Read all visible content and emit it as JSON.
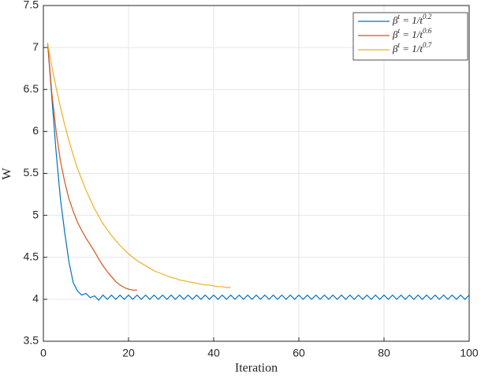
{
  "chart_data": {
    "type": "line",
    "xlabel": "Iteration",
    "ylabel": "W",
    "xlim": [
      0,
      100
    ],
    "xticks": [
      0,
      20,
      40,
      60,
      80,
      100
    ],
    "ylim": [
      3.5,
      7.5
    ],
    "yticks": [
      3.5,
      4,
      4.5,
      5,
      5.5,
      6,
      6.5,
      7,
      7.5
    ],
    "grid": true,
    "legend": "upper right",
    "series": [
      {
        "name": "β^t = 1/t^0.2",
        "color": "#0072bd",
        "x": [
          1,
          2,
          3,
          4,
          5,
          6,
          7,
          8,
          9,
          10,
          11,
          12,
          13,
          14,
          15,
          16,
          17,
          18,
          19,
          20,
          21,
          22,
          23,
          24,
          25,
          26,
          27,
          28,
          29,
          30,
          31,
          32,
          33,
          34,
          35,
          36,
          37,
          38,
          39,
          40,
          41,
          42,
          43,
          44,
          45,
          46,
          47,
          48,
          49,
          50,
          51,
          52,
          53,
          54,
          55,
          56,
          57,
          58,
          59,
          60,
          61,
          62,
          63,
          64,
          65,
          66,
          67,
          68,
          69,
          70,
          71,
          72,
          73,
          74,
          75,
          76,
          77,
          78,
          79,
          80,
          81,
          82,
          83,
          84,
          85,
          86,
          87,
          88,
          89,
          90,
          91,
          92,
          93,
          94,
          95,
          96,
          97,
          98,
          99,
          100
        ],
        "values": [
          7.05,
          6.4,
          5.75,
          5.2,
          4.8,
          4.45,
          4.2,
          4.1,
          4.05,
          4.07,
          4.02,
          4.04,
          3.99,
          4.05,
          4.0,
          4.05,
          4.0,
          4.05,
          4.0,
          4.05,
          4.0,
          4.05,
          4.0,
          4.05,
          4.0,
          4.05,
          4.0,
          4.05,
          4.0,
          4.05,
          4.0,
          4.05,
          4.0,
          4.05,
          4.0,
          4.05,
          4.0,
          4.05,
          4.0,
          4.05,
          4.0,
          4.05,
          4.0,
          4.05,
          4.0,
          4.05,
          4.0,
          4.05,
          4.0,
          4.05,
          4.0,
          4.05,
          4.0,
          4.05,
          4.0,
          4.05,
          4.0,
          4.05,
          4.0,
          4.05,
          4.0,
          4.05,
          4.0,
          4.05,
          4.0,
          4.05,
          4.0,
          4.05,
          4.0,
          4.05,
          4.0,
          4.05,
          4.0,
          4.05,
          4.0,
          4.05,
          4.0,
          4.05,
          4.0,
          4.05,
          4.0,
          4.05,
          4.0,
          4.05,
          4.0,
          4.05,
          4.0,
          4.05,
          4.0,
          4.05,
          4.0,
          4.05,
          4.0,
          4.05,
          4.0,
          4.05,
          4.0,
          4.05,
          4.0,
          4.05
        ]
      },
      {
        "name": "β^t = 1/t^0.6",
        "color": "#d95319",
        "x": [
          1,
          2,
          3,
          4,
          5,
          6,
          7,
          8,
          9,
          10,
          11,
          12,
          13,
          14,
          15,
          16,
          17,
          18,
          19,
          20,
          21,
          22
        ],
        "values": [
          7.05,
          6.45,
          6.0,
          5.65,
          5.4,
          5.2,
          5.05,
          4.92,
          4.82,
          4.73,
          4.65,
          4.57,
          4.48,
          4.4,
          4.33,
          4.27,
          4.21,
          4.17,
          4.14,
          4.12,
          4.11,
          4.11
        ]
      },
      {
        "name": "β^t = 1/t^0.7",
        "color": "#edb120",
        "x": [
          1,
          2,
          3,
          4,
          5,
          6,
          7,
          8,
          9,
          10,
          11,
          12,
          13,
          14,
          15,
          16,
          17,
          18,
          19,
          20,
          21,
          22,
          23,
          24,
          25,
          26,
          27,
          28,
          29,
          30,
          31,
          32,
          33,
          34,
          35,
          36,
          37,
          38,
          39,
          40,
          41,
          42,
          43,
          44
        ],
        "values": [
          7.05,
          6.77,
          6.52,
          6.29,
          6.08,
          5.89,
          5.72,
          5.56,
          5.43,
          5.3,
          5.19,
          5.08,
          4.99,
          4.9,
          4.83,
          4.76,
          4.7,
          4.64,
          4.59,
          4.54,
          4.5,
          4.46,
          4.43,
          4.4,
          4.37,
          4.34,
          4.32,
          4.3,
          4.28,
          4.26,
          4.25,
          4.23,
          4.22,
          4.21,
          4.2,
          4.19,
          4.18,
          4.17,
          4.17,
          4.16,
          4.15,
          4.15,
          4.14,
          4.14
        ]
      }
    ]
  }
}
